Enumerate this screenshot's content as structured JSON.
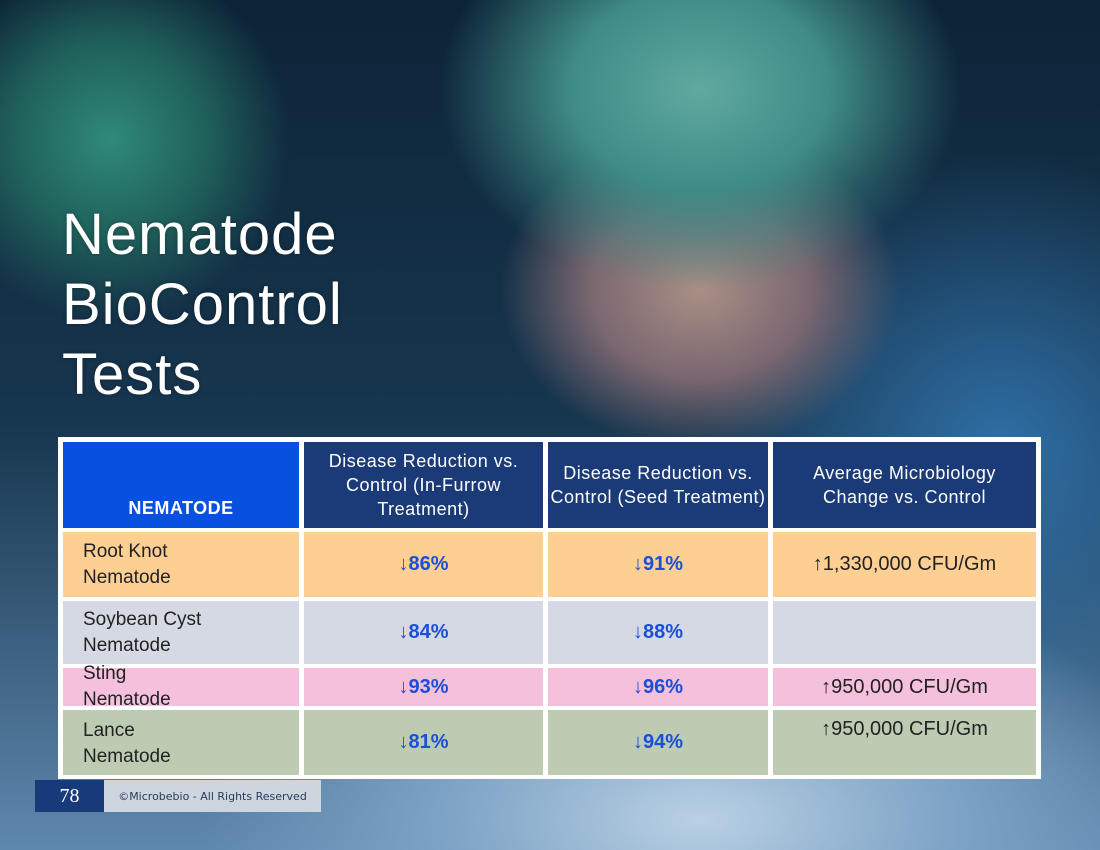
{
  "title": [
    "Nematode",
    "BioControl",
    "Tests"
  ],
  "table": {
    "headers": [
      "NEMATODE",
      "Disease Reduction vs. Control (In-Furrow Treatment)",
      "Disease Reduction vs. Control (Seed Treatment)",
      "Average Microbiology Change vs. Control"
    ],
    "rows": [
      {
        "name": "Root Knot Nematode",
        "in_furrow": "↓86%",
        "seed": "↓91%",
        "microbiology": "↑1,330,000 CFU/Gm",
        "color": "#fdcf93"
      },
      {
        "name": "Soybean Cyst Nematode",
        "in_furrow": "↓84%",
        "seed": "↓88%",
        "microbiology": "",
        "color": "#d4d9e3"
      },
      {
        "name": "Sting Nematode",
        "in_furrow": "↓93%",
        "seed": "↓96%",
        "microbiology": "↑950,000 CFU/Gm",
        "color": "#f5c0dc"
      },
      {
        "name": "Lance Nematode",
        "in_furrow": "↓81%",
        "seed": "↓94%",
        "microbiology": "↑950,000 CFU/Gm",
        "color": "#bccbb2"
      }
    ]
  },
  "footer": {
    "page_number": "78",
    "copyright": "©Microbebio - All Rights Reserved"
  }
}
